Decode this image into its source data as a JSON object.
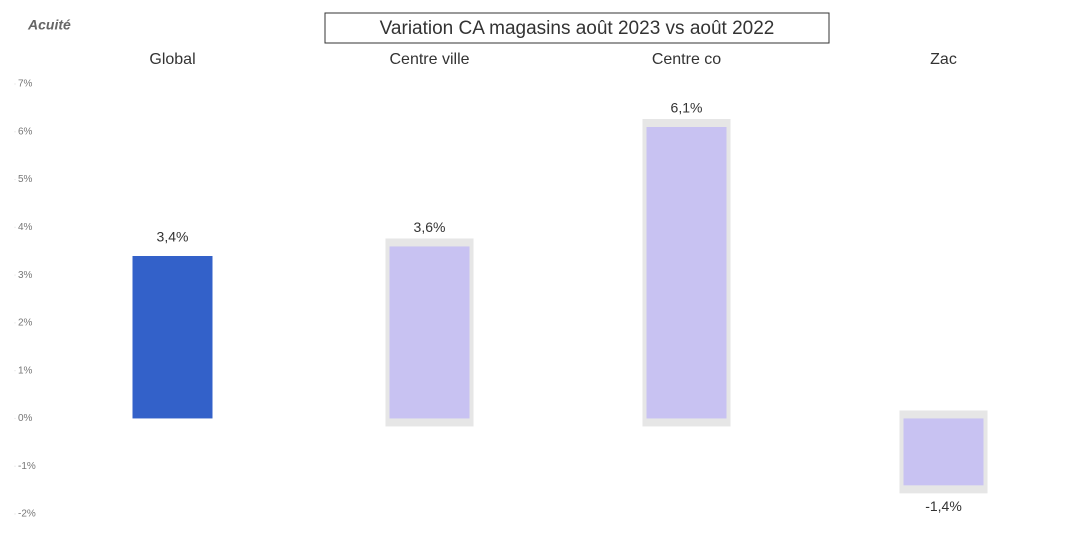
{
  "logo": "Acuité",
  "chart_data": {
    "type": "bar",
    "title": "Variation CA magasins août 2023 vs août 2022",
    "categories": [
      "Global",
      "Centre ville",
      "Centre co",
      "Zac"
    ],
    "values": [
      3.4,
      3.6,
      6.1,
      -1.4
    ],
    "value_labels": [
      "3,4%",
      "3,6%",
      "6,1%",
      "-1,4%"
    ],
    "colors": [
      "#3361c9",
      "#c8c2f2",
      "#c8c2f2",
      "#c8c2f2"
    ],
    "ylim": [
      -2,
      7
    ],
    "yticks": [
      {
        "value": 7,
        "label": "7%"
      },
      {
        "value": 6,
        "label": "6%"
      },
      {
        "value": 5,
        "label": "5%"
      },
      {
        "value": 4,
        "label": "4%"
      },
      {
        "value": 3,
        "label": "3%"
      },
      {
        "value": 2,
        "label": "2%"
      },
      {
        "value": 1,
        "label": "1%"
      },
      {
        "value": 0,
        "label": "0%"
      },
      {
        "value": -1,
        "label": "-1%"
      },
      {
        "value": -2,
        "label": "-2%"
      }
    ]
  }
}
